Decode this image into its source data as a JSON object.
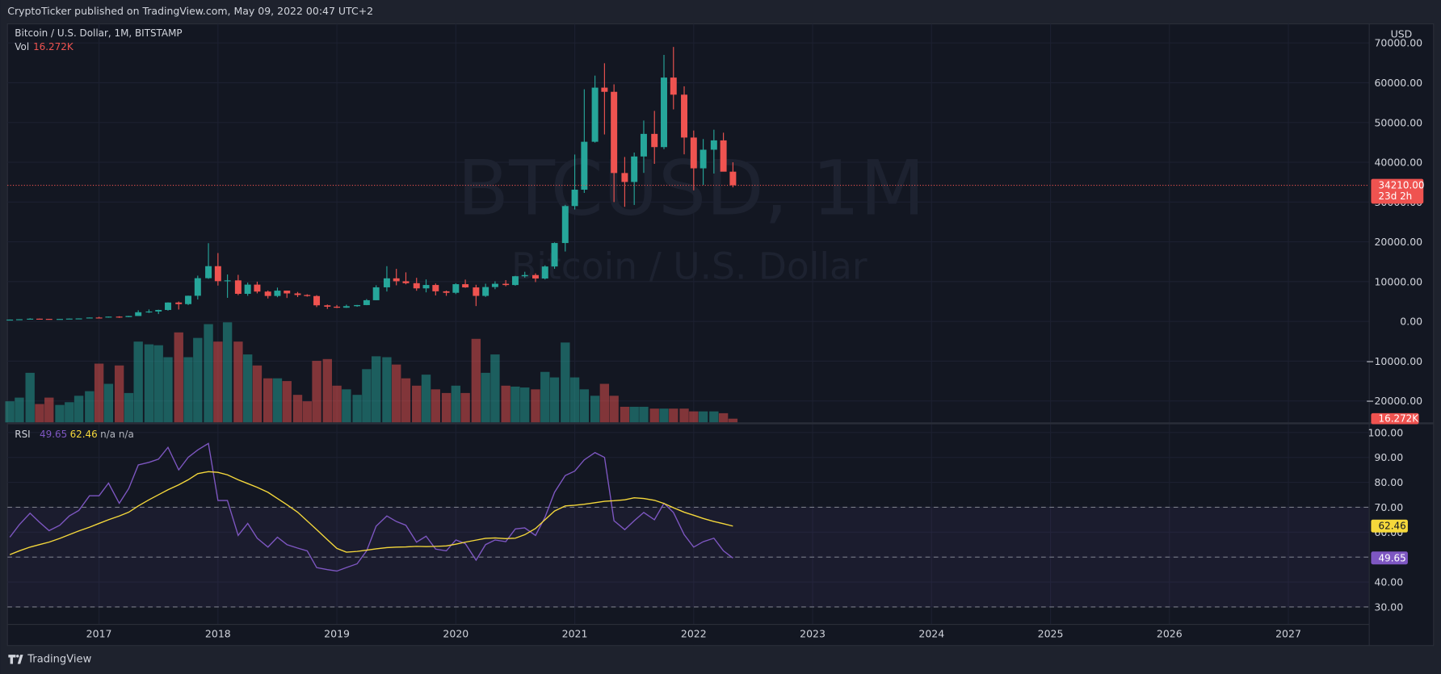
{
  "header": {
    "publisher_line": "CryptoTicker published on TradingView.com, May 09, 2022 00:47 UTC+2"
  },
  "footer": {
    "logo_text": "TradingView"
  },
  "chart_data": [
    {
      "type": "candlestick",
      "title": "Bitcoin / U.S. Dollar, 1M, BITSTAMP",
      "watermark": "BTCUSD, 1M",
      "watermark_subtitle": "Bitcoin / U.S. Dollar",
      "currency": "USD",
      "x": [
        2016.25,
        2016.33,
        2016.42,
        2016.5,
        2016.58,
        2016.67,
        2016.75,
        2016.83,
        2016.92,
        2017,
        2017.08,
        2017.17,
        2017.25,
        2017.33,
        2017.42,
        2017.5,
        2017.58,
        2017.67,
        2017.75,
        2017.83,
        2017.92,
        2018,
        2018.08,
        2018.17,
        2018.25,
        2018.33,
        2018.42,
        2018.5,
        2018.58,
        2018.67,
        2018.75,
        2018.83,
        2018.92,
        2019,
        2019.08,
        2019.17,
        2019.25,
        2019.33,
        2019.42,
        2019.5,
        2019.58,
        2019.67,
        2019.75,
        2019.83,
        2019.92,
        2020,
        2020.08,
        2020.17,
        2020.25,
        2020.33,
        2020.42,
        2020.5,
        2020.58,
        2020.67,
        2020.75,
        2020.83,
        2020.92,
        2021,
        2021.08,
        2021.17,
        2021.25,
        2021.33,
        2021.42,
        2021.5,
        2021.58,
        2021.67,
        2021.75,
        2021.83,
        2021.92,
        2022,
        2022.08,
        2022.17,
        2022.25,
        2022.33
      ],
      "open": [
        416,
        448,
        531,
        673,
        624,
        575,
        609,
        700,
        742,
        966,
        965,
        1190,
        1080,
        1350,
        2300,
        2480,
        2870,
        4740,
        4340,
        6440,
        10860,
        13880,
        10110,
        10310,
        6930,
        9240,
        7490,
        6390,
        7730,
        7030,
        6630,
        6370,
        4040,
        3690,
        3440,
        3820,
        4100,
        5320,
        8560,
        10820,
        10090,
        9600,
        8300,
        9150,
        7560,
        7190,
        9350,
        8540,
        6410,
        8630,
        9450,
        9140,
        11350,
        11650,
        10780,
        13800,
        19700,
        28990,
        33110,
        45160,
        58770,
        57720,
        37300,
        35050,
        41460,
        47140,
        43820,
        61300,
        57000,
        46220,
        38480,
        43160,
        45510,
        37640
      ],
      "high": [
        466,
        550,
        780,
        704,
        628,
        630,
        720,
        753,
        979,
        1150,
        1200,
        1290,
        1370,
        2790,
        3000,
        2940,
        4780,
        4990,
        6470,
        11500,
        19660,
        17180,
        11790,
        11700,
        9760,
        9990,
        7760,
        8490,
        7750,
        7400,
        6820,
        6590,
        4240,
        4110,
        4200,
        4130,
        5600,
        9080,
        13880,
        13200,
        12330,
        10950,
        10540,
        9520,
        7750,
        9580,
        10500,
        9200,
        9470,
        10080,
        10380,
        11450,
        12470,
        12070,
        14100,
        19860,
        29300,
        41950,
        58350,
        61790,
        64900,
        59600,
        41330,
        42450,
        50500,
        52920,
        67000,
        69000,
        59100,
        47990,
        45850,
        48190,
        47440,
        40000
      ],
      "low": [
        414,
        440,
        510,
        605,
        470,
        570,
        604,
        690,
        740,
        755,
        935,
        890,
        1060,
        1350,
        2120,
        1840,
        2690,
        2980,
        4110,
        5500,
        10700,
        9000,
        5920,
        6600,
        6430,
        7040,
        5760,
        6070,
        5880,
        6120,
        6220,
        3600,
        3130,
        3350,
        3390,
        3670,
        4070,
        5320,
        7510,
        9070,
        9320,
        7700,
        7300,
        6520,
        6430,
        6870,
        8430,
        3850,
        6150,
        8100,
        8830,
        8970,
        10980,
        9880,
        10540,
        13210,
        17570,
        28130,
        32300,
        44950,
        47000,
        30000,
        28800,
        29270,
        37330,
        39600,
        43300,
        53300,
        42000,
        32950,
        34300,
        37170,
        37700,
        33700
      ],
      "close": [
        448,
        531,
        673,
        624,
        575,
        609,
        700,
        742,
        966,
        965,
        1190,
        1080,
        1350,
        2300,
        2480,
        2870,
        4740,
        4340,
        6440,
        10860,
        13880,
        10110,
        10310,
        6930,
        9240,
        7490,
        6390,
        7730,
        7030,
        6630,
        6370,
        4040,
        3690,
        3440,
        3820,
        4100,
        5320,
        8560,
        10820,
        10090,
        9600,
        8300,
        9150,
        7560,
        7190,
        9350,
        8540,
        6410,
        8630,
        9450,
        9140,
        11350,
        11650,
        10780,
        13800,
        19700,
        28990,
        33110,
        45160,
        58770,
        57720,
        37300,
        35050,
        41460,
        47140,
        43820,
        61300,
        57000,
        46220,
        38480,
        43160,
        45510,
        37640,
        34210
      ],
      "up_color": "#26a69a",
      "down_color": "#ef5350",
      "ylim": [
        -25400,
        74800
      ],
      "yticks": [
        {
          "value": 70000,
          "label": "70000.00"
        },
        {
          "value": 60000,
          "label": "60000.00"
        },
        {
          "value": 50000,
          "label": "50000.00"
        },
        {
          "value": 40000,
          "label": "40000.00"
        },
        {
          "value": 30000,
          "label": "30000.00"
        },
        {
          "value": 20000,
          "label": "20000.00"
        },
        {
          "value": 10000,
          "label": "10000.00"
        },
        {
          "value": 0,
          "label": "0.00"
        },
        {
          "value": -10000,
          "label": "−10000.00"
        },
        {
          "value": -20000,
          "label": "−20000.00"
        }
      ],
      "grid": true,
      "last_price_label": "34210.00",
      "countdown": "23d 2h"
    },
    {
      "type": "bar",
      "name": "Vol",
      "values": [
        92000,
        108000,
        216000,
        80000,
        108000,
        76000,
        88000,
        116000,
        136000,
        256000,
        168000,
        248000,
        128000,
        352000,
        340000,
        336000,
        284000,
        392000,
        284000,
        368000,
        428000,
        352000,
        436000,
        352000,
        296000,
        248000,
        192000,
        192000,
        180000,
        120000,
        92000,
        268000,
        276000,
        160000,
        144000,
        120000,
        232000,
        288000,
        284000,
        252000,
        192000,
        160000,
        208000,
        144000,
        128000,
        160000,
        128000,
        364000,
        216000,
        296000,
        160000,
        156000,
        152000,
        144000,
        220000,
        196000,
        348000,
        196000,
        144000,
        116000,
        168000,
        116000,
        68000,
        68000,
        68000,
        60000,
        60000,
        60000,
        60000,
        48000,
        48000,
        48000,
        40000,
        16272
      ],
      "legend_value_label": "16.272K",
      "up_color": "rgba(38,166,154,0.5)",
      "down_color": "rgba(239,83,80,0.5)"
    },
    {
      "type": "line",
      "name": "RSI",
      "series": [
        {
          "color": "#7e57c2",
          "values": [
            58,
            63,
            67.6,
            64,
            60.6,
            62.8,
            66.5,
            68.7,
            74.6,
            74.6,
            79.7,
            71.6,
            77.5,
            87,
            88,
            89.3,
            94,
            85,
            90,
            93,
            95.6,
            72.7,
            72.7,
            58.7,
            63.5,
            57.6,
            54,
            58,
            55,
            53.6,
            52.5,
            45.8,
            45,
            44.4,
            45.8,
            47.3,
            52.5,
            62.4,
            66.5,
            64.3,
            62.8,
            56,
            58.4,
            53.2,
            52.5,
            56.9,
            55.4,
            48.8,
            55,
            56.9,
            56.2,
            61.3,
            61.7,
            58.7,
            66,
            76,
            82.7,
            84.5,
            89,
            91.9,
            90,
            64.6,
            61,
            64.6,
            67.9,
            65,
            71.6,
            67.9,
            59,
            54,
            56.2,
            57.6,
            52.5,
            49.65
          ]
        },
        {
          "color": "#f5d83b",
          "values": [
            51,
            52.5,
            54,
            55,
            56,
            57.5,
            59,
            60.5,
            62,
            63.5,
            65,
            66.5,
            68,
            70.5,
            73,
            75,
            77,
            79,
            81,
            83.5,
            84.3,
            84,
            83,
            81,
            79.5,
            78,
            76,
            73.5,
            71,
            68,
            64.5,
            61,
            57,
            53.5,
            52,
            52.3,
            52.8,
            53.3,
            53.8,
            54,
            54.1,
            54.3,
            54.2,
            54.3,
            54.5,
            55.2,
            56,
            56.8,
            57.5,
            57.7,
            57.4,
            57.6,
            59,
            61.5,
            65,
            68.5,
            70.5,
            70.8,
            71.2,
            71.8,
            72.4,
            72.6,
            73,
            73.8,
            73.5,
            72.8,
            71.5,
            69.8,
            68,
            66.8,
            65.5,
            64.3,
            63.4,
            62.46
          ]
        }
      ],
      "legend_placeholders": [
        "n/a",
        "n/a"
      ],
      "ylim": [
        23,
        103.3
      ],
      "yticks": [
        {
          "value": 100,
          "label": "100.00"
        },
        {
          "value": 90,
          "label": "90.00"
        },
        {
          "value": 80,
          "label": "80.00"
        },
        {
          "value": 70,
          "label": "70.00"
        },
        {
          "value": 60,
          "label": "60.00"
        },
        {
          "value": 50,
          "label": "50.00"
        },
        {
          "value": 40,
          "label": "40.00"
        },
        {
          "value": 30,
          "label": "30.00"
        }
      ],
      "bands": [
        70,
        50,
        30
      ],
      "xlim": [
        2016.23,
        2027.68
      ],
      "xticks": [
        2017,
        2018,
        2019,
        2020,
        2021,
        2022,
        2023,
        2024,
        2025,
        2026,
        2027
      ]
    }
  ]
}
